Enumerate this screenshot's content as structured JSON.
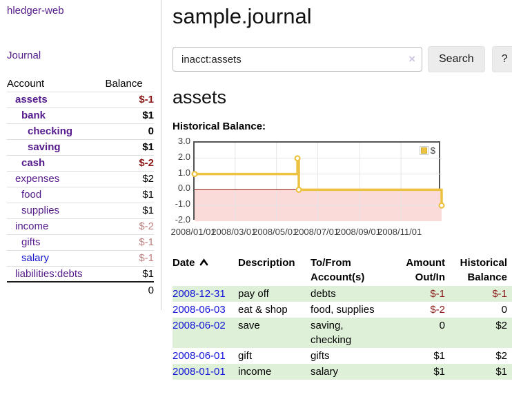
{
  "app": {
    "title": "hledger-web"
  },
  "sidebar": {
    "nav": {
      "journal_label": "Journal"
    },
    "accounts_table": {
      "account_header": "Account",
      "balance_header": "Balance",
      "rows": [
        {
          "name": "assets",
          "depth": 1,
          "bold": true,
          "balance": "$-1",
          "balance_tone": "neg-strong",
          "link_color": "purple"
        },
        {
          "name": "bank",
          "depth": 2,
          "bold": true,
          "balance": "$1",
          "balance_tone": "normal",
          "link_color": "purple"
        },
        {
          "name": "checking",
          "depth": 3,
          "bold": true,
          "balance": "0",
          "balance_tone": "normal",
          "link_color": "purple"
        },
        {
          "name": "saving",
          "depth": 3,
          "bold": true,
          "balance": "$1",
          "balance_tone": "normal",
          "link_color": "purple"
        },
        {
          "name": "cash",
          "depth": 2,
          "bold": true,
          "balance": "$-2",
          "balance_tone": "neg-strong",
          "link_color": "purple"
        },
        {
          "name": "expenses",
          "depth": 1,
          "bold": false,
          "balance": "$2",
          "balance_tone": "normal",
          "link_color": "purple"
        },
        {
          "name": "food",
          "depth": 2,
          "bold": false,
          "balance": "$1",
          "balance_tone": "normal",
          "link_color": "purple"
        },
        {
          "name": "supplies",
          "depth": 2,
          "bold": false,
          "balance": "$1",
          "balance_tone": "normal",
          "link_color": "purple"
        },
        {
          "name": "income",
          "depth": 1,
          "bold": false,
          "balance": "$-2",
          "balance_tone": "neg-soft",
          "link_color": "purple"
        },
        {
          "name": "gifts",
          "depth": 2,
          "bold": false,
          "balance": "$-1",
          "balance_tone": "neg-soft",
          "link_color": "purple"
        },
        {
          "name": "salary",
          "depth": 2,
          "bold": false,
          "balance": "$-1",
          "balance_tone": "neg-soft",
          "link_color": "blue"
        },
        {
          "name": "liabilities:debts",
          "depth": 1,
          "bold": false,
          "balance": "$1",
          "balance_tone": "normal",
          "link_color": "purple"
        }
      ],
      "total": "0"
    }
  },
  "header": {
    "title": "sample.journal"
  },
  "search": {
    "value": "inacct:assets",
    "clear_label": "×",
    "search_label": "Search",
    "help_label": "?"
  },
  "account_page": {
    "heading": "assets",
    "chart_label": "Historical Balance:"
  },
  "chart_data": {
    "type": "line",
    "interpolation": "step",
    "title": "Historical Balance:",
    "series": [
      {
        "name": "$",
        "color": "#edc240",
        "points": [
          [
            "2008-01-01",
            1
          ],
          [
            "2008-06-01",
            2
          ],
          [
            "2008-06-03",
            0
          ],
          [
            "2008-12-31",
            -1
          ]
        ]
      }
    ],
    "xlim": [
      "2008-01-01",
      "2008-12-31"
    ],
    "ylim": [
      -2,
      3
    ],
    "yticks": [
      3.0,
      2.0,
      1.0,
      0.0,
      -1.0,
      -2.0
    ],
    "xticks": [
      {
        "date": "2008-01-01",
        "label": "2008/01/01"
      },
      {
        "date": "2008-03-01",
        "label": "2008/03/01"
      },
      {
        "date": "2008-05-01",
        "label": "2008/05/01"
      },
      {
        "date": "2008-07-01",
        "label": "2008/07/01"
      },
      {
        "date": "2008-09-01",
        "label": "2008/09/01"
      },
      {
        "date": "2008-11-01",
        "label": "2008/11/01"
      }
    ],
    "grid": true,
    "legend_position": "top-right",
    "negative_region_fill": "#fbdada",
    "zero_line_color": "#8f0000",
    "grid_color": "#e5e5e5",
    "border_color": "#545454"
  },
  "register": {
    "headers": {
      "date": "Date",
      "sort": "asc",
      "description": "Description",
      "accounts": "To/From Account(s)",
      "amount": "Amount Out/In",
      "balance": "Historical Balance"
    },
    "rows": [
      {
        "date": "2008-12-31",
        "description": "pay off",
        "accounts": "debts",
        "amount": "$-1",
        "amount_neg": true,
        "balance": "$-1",
        "balance_neg": true
      },
      {
        "date": "2008-06-03",
        "description": "eat & shop",
        "accounts": "food, supplies",
        "amount": "$-2",
        "amount_neg": true,
        "balance": "0",
        "balance_neg": false
      },
      {
        "date": "2008-06-02",
        "description": "save",
        "accounts": "saving, checking",
        "amount": "0",
        "amount_neg": false,
        "balance": "$2",
        "balance_neg": false
      },
      {
        "date": "2008-06-01",
        "description": "gift",
        "accounts": "gifts",
        "amount": "$1",
        "amount_neg": false,
        "balance": "$2",
        "balance_neg": false
      },
      {
        "date": "2008-01-01",
        "description": "income",
        "accounts": "salary",
        "amount": "$1",
        "amount_neg": false,
        "balance": "$1",
        "balance_neg": false
      }
    ]
  },
  "colors": {
    "accent_purple": "#551a8b",
    "link_blue": "#1212d8",
    "negative_strong": "#8b1717",
    "negative_soft": "#bd7f7f",
    "row_stripe_green": "#dff0d8",
    "chart_line_yellow": "#edc240",
    "chart_negative_fill": "#fbdada",
    "chart_zero_line": "#8f0000",
    "button_bg": "#ececec"
  }
}
